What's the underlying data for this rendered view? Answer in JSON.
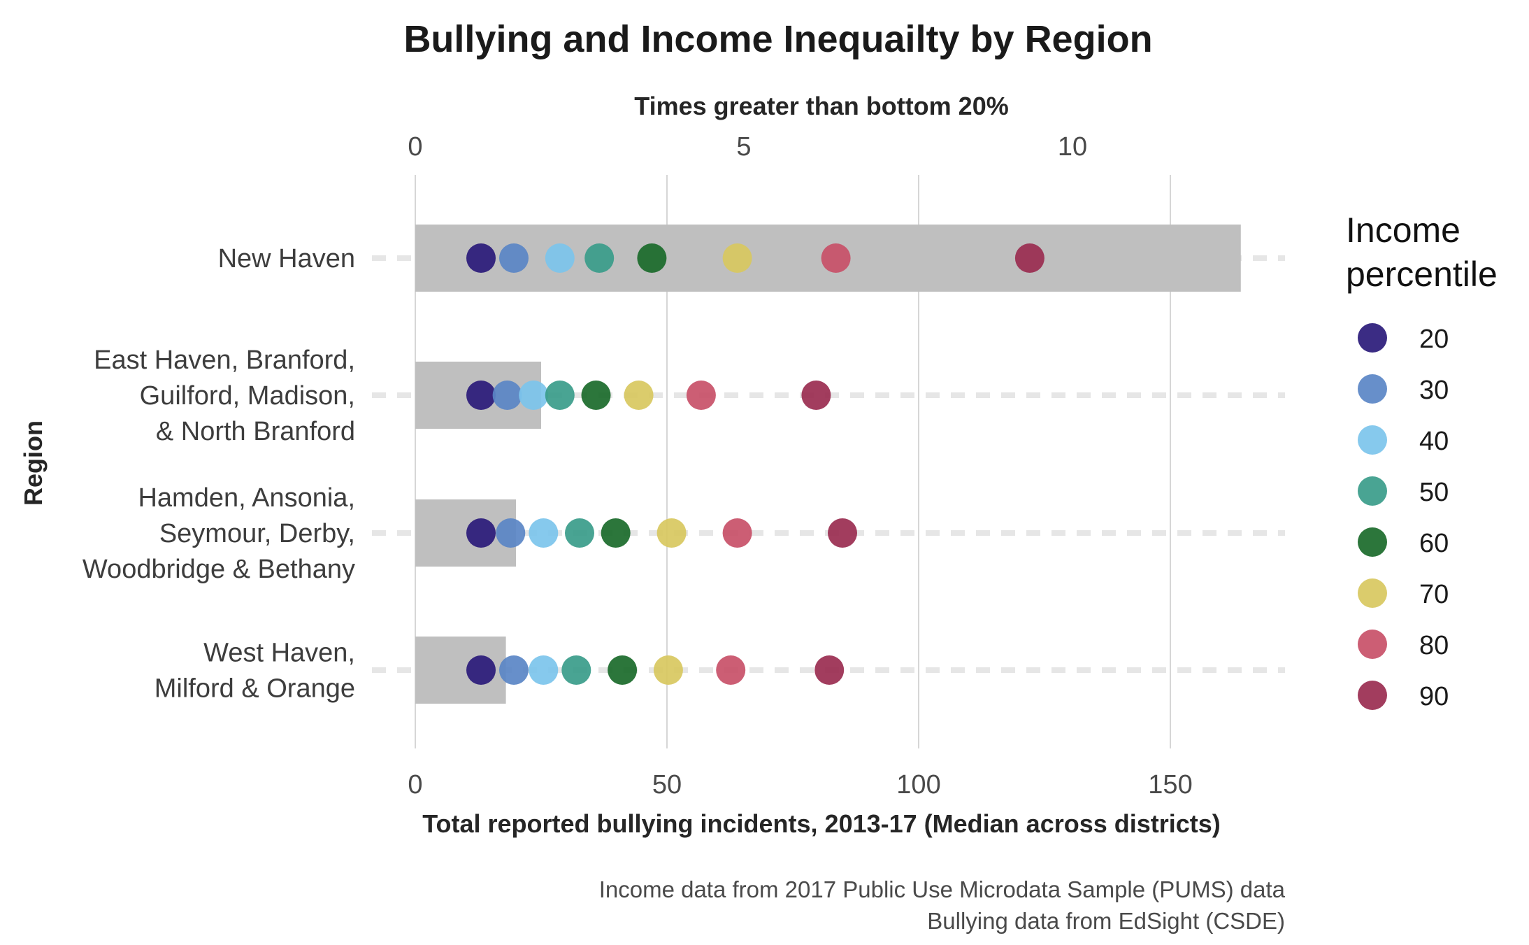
{
  "chart_data": {
    "type": "bar",
    "title": "Bullying and Income Inequailty by Region",
    "xlabel": "Total reported bullying incidents, 2013-17 (Median across districts)",
    "x2label": "Times greater than bottom 20%",
    "ylabel": "Region",
    "xlim": [
      0,
      172
    ],
    "xticks": [
      0,
      50,
      100,
      150
    ],
    "x2lim": [
      0,
      13.2
    ],
    "x2ticks": [
      0,
      5,
      10
    ],
    "categories": [
      [
        "New Haven"
      ],
      [
        "East Haven, Branford,",
        "Guilford, Madison,",
        "& North Branford"
      ],
      [
        "Hamden, Ansonia,",
        "Seymour, Derby,",
        "Woodbridge & Bethany"
      ],
      [
        "West Haven,",
        "Milford & Orange"
      ]
    ],
    "bars": [
      164,
      25,
      20,
      18
    ],
    "legend_title": [
      "Income",
      "percentile"
    ],
    "series": [
      {
        "name": "20",
        "color": "#2a1a7a",
        "values": [
          1.0,
          1.0,
          1.0,
          1.0
        ]
      },
      {
        "name": "30",
        "color": "#5a86c6",
        "values": [
          1.5,
          1.4,
          1.45,
          1.5
        ]
      },
      {
        "name": "40",
        "color": "#7cc4ec",
        "values": [
          2.2,
          1.8,
          1.95,
          1.95
        ]
      },
      {
        "name": "50",
        "color": "#3a9c8a",
        "values": [
          2.8,
          2.2,
          2.5,
          2.45
        ]
      },
      {
        "name": "60",
        "color": "#1a6a2a",
        "values": [
          3.6,
          2.75,
          3.05,
          3.15
        ]
      },
      {
        "name": "70",
        "color": "#d8c860",
        "values": [
          4.9,
          3.4,
          3.9,
          3.85
        ]
      },
      {
        "name": "80",
        "color": "#c85068",
        "values": [
          6.4,
          4.35,
          4.9,
          4.8
        ]
      },
      {
        "name": "90",
        "color": "#9a2c50",
        "values": [
          9.35,
          6.1,
          6.5,
          6.3
        ]
      }
    ],
    "grid": true,
    "legend_position": "right",
    "caption": [
      "Income data from 2017 Public Use Microdata Sample (PUMS) data",
      "Bullying data from EdSight (CSDE)"
    ]
  }
}
